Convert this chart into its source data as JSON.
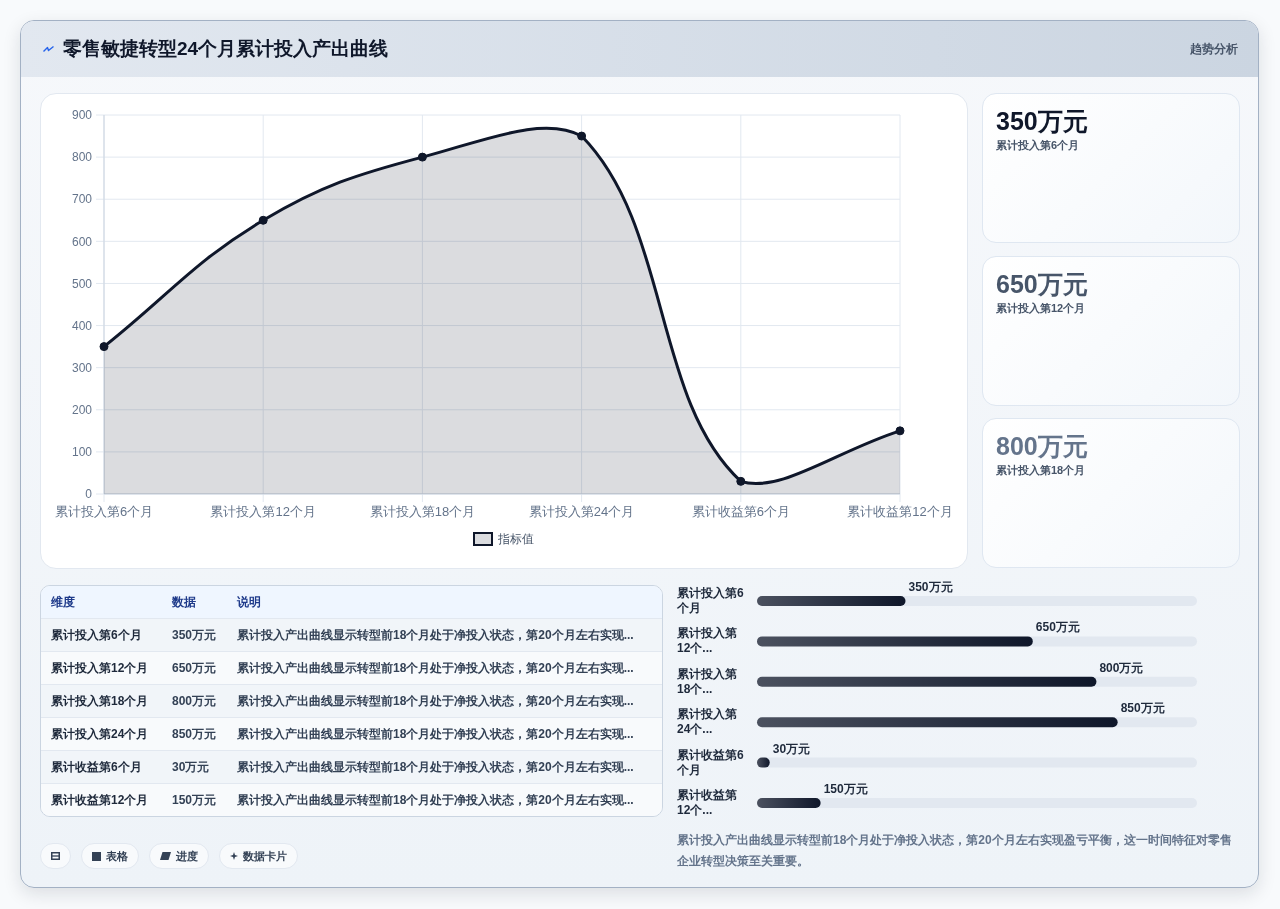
{
  "chart_data": [
    {
      "type": "area",
      "title": "零售敏捷转型24个月累计投入产出曲线",
      "annotations": [
        "趋势分析"
      ],
      "categories": [
        "累计投入第6个月",
        "累计投入第12个月",
        "累计投入第18个月",
        "累计投入第24个月",
        "累计收益第6个月",
        "累计收益第12个月"
      ],
      "series": [
        {
          "name": "指标值",
          "color": "#0f172a",
          "values": [
            350,
            650,
            800,
            850,
            30,
            150
          ]
        }
      ],
      "ylim": [
        0,
        900
      ],
      "yticks": [
        0,
        100,
        200,
        300,
        400,
        500,
        600,
        700,
        800,
        900
      ],
      "grid": true,
      "legend": "bottom",
      "marker": "circle"
    },
    {
      "type": "other",
      "categories": [
        "累计投入第6个月",
        "累计投入第12个月",
        "累计投入第18个月"
      ],
      "value_labels": [
        "350万元",
        "650万元",
        "800万元"
      ]
    },
    {
      "type": "other",
      "categories": [
        "累计投入第6个月",
        "累计投入第12个月",
        "累计投入第18个月",
        "累计投入第24个月",
        "累计收益第6个月",
        "累计收益第12个月"
      ],
      "value_labels": [
        "350万元",
        "650万元",
        "800万元",
        "850万元",
        "30万元",
        "150万元"
      ],
      "annotations": [
        "维度",
        "数据",
        "说明",
        "累计投入产出曲线显示转型前18个月处于净投入状态，第20个月左右实现...",
        "累计投入产出曲线显示转型前18个月处于净投入状态，第20个月左右实现...",
        "累计投入产出曲线显示转型前18个月处于净投入状态，第20个月左右实现...",
        "累计投入产出曲线显示转型前18个月处于净投入状态，第20个月左右实现...",
        "累计投入产出曲线显示转型前18个月处于净投入状态，第20个月左右实现...",
        "累计投入产出曲线显示转型前18个月处于净投入状态，第20个月左右实现...",
        "表格",
        "进度",
        "数据卡片"
      ]
    },
    {
      "type": "bar",
      "orientation": "horizontal",
      "categories": [
        "累计投入第6个月",
        "累计投入第12个...",
        "累计投入第18个...",
        "累计投入第24个...",
        "累计收益第6个月",
        "累计收益第12个..."
      ],
      "values": [
        350,
        650,
        800,
        850,
        30,
        150
      ],
      "value_labels": [
        "350万元",
        "650万元",
        "800万元",
        "850万元",
        "30万元",
        "150万元"
      ],
      "color": "#0f172a",
      "annotations": [
        "累计投入产出曲线显示转型前18个月处于净投入状态，第20个月左右实现盈亏平衡，这一时间特征对零售企业转型决策至关重要。"
      ]
    }
  ]
}
